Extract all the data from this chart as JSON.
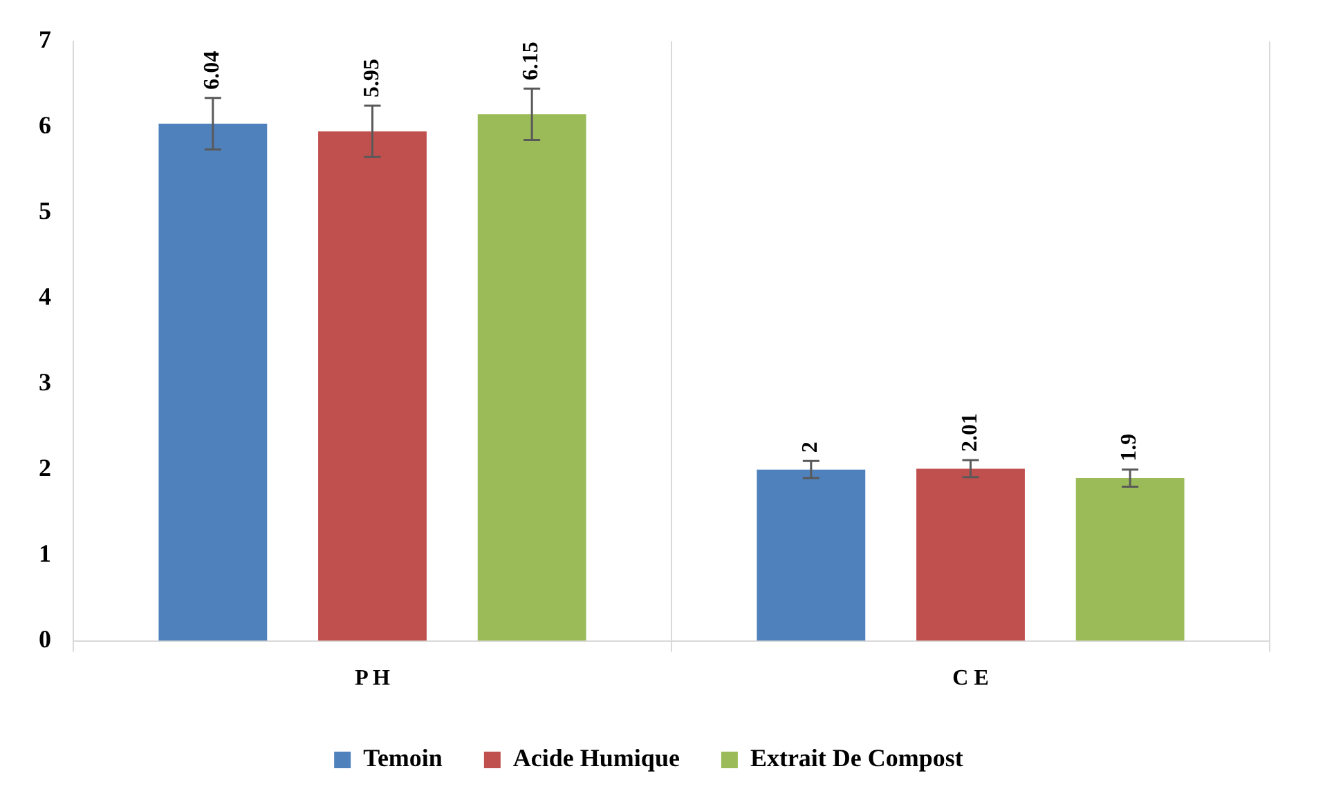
{
  "chart_data": {
    "type": "bar",
    "categories": [
      "P H",
      "C E"
    ],
    "series": [
      {
        "name": "Temoin",
        "color": "#4f81bd",
        "values": [
          6.04,
          2
        ],
        "errors": [
          0.3,
          0.1
        ]
      },
      {
        "name": "Acide Humique",
        "color": "#c0504d",
        "values": [
          5.95,
          2.01
        ],
        "errors": [
          0.3,
          0.1
        ]
      },
      {
        "name": "Extrait De Compost",
        "color": "#9bbb59",
        "values": [
          6.15,
          1.9
        ],
        "errors": [
          0.3,
          0.1
        ]
      }
    ],
    "ylim": [
      0,
      7
    ],
    "yticks": [
      0,
      1,
      2,
      3,
      4,
      5,
      6,
      7
    ],
    "grid": "x",
    "legend": "bottom",
    "data_labels": true
  }
}
